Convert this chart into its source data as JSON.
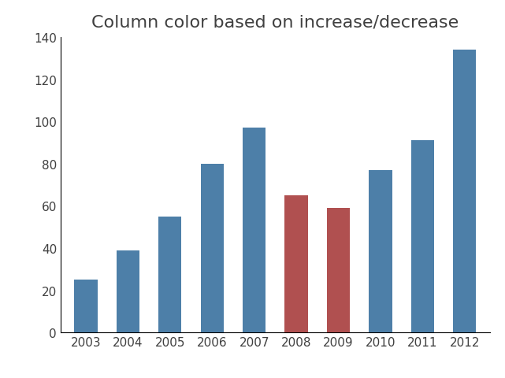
{
  "title": "Column color based on increase/decrease",
  "categories": [
    "2003",
    "2004",
    "2005",
    "2006",
    "2007",
    "2008",
    "2009",
    "2010",
    "2011",
    "2012"
  ],
  "values": [
    25,
    39,
    55,
    80,
    97,
    65,
    59,
    77,
    91,
    134
  ],
  "bar_colors": [
    "#4d7fa8",
    "#4d7fa8",
    "#4d7fa8",
    "#4d7fa8",
    "#4d7fa8",
    "#b05050",
    "#b05050",
    "#4d7fa8",
    "#4d7fa8",
    "#4d7fa8"
  ],
  "ylim": [
    0,
    140
  ],
  "yticks": [
    0,
    20,
    40,
    60,
    80,
    100,
    120,
    140
  ],
  "background_color": "#ffffff",
  "title_fontsize": 16,
  "tick_fontsize": 11,
  "bar_width": 0.55
}
